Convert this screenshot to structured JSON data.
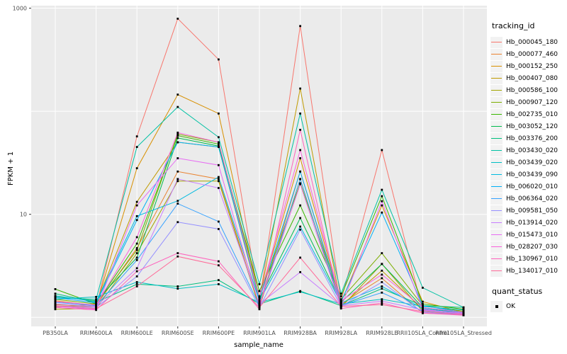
{
  "colors": {
    "panel_bg": "#ebebeb",
    "grid": "#ffffff",
    "tick": "#333333",
    "tick_text": "#4d4d4d",
    "marker": "#000000",
    "key_bg": "#f2f2f2"
  },
  "chart_data": {
    "type": "line",
    "title": "",
    "xlabel": "sample_name",
    "ylabel": "FPKM + 1",
    "yscale": "log10",
    "ylim": [
      1,
      1000
    ],
    "yticks": [
      {
        "value": 1000,
        "label": "1000"
      },
      {
        "value": 10,
        "label": "10"
      }
    ],
    "ygrid_values": [
      1,
      10,
      100,
      1000
    ],
    "grid": true,
    "legend_position": "right",
    "x_categories": [
      "PB350LA",
      "RRIM600LA",
      "RRIM600LE",
      "RRIM600SE",
      "RRIM600PE",
      "RRIM901LA",
      "RRIM928BA",
      "RRIM928LA",
      "RRIM928LE",
      "RRII105LA_Control",
      "RRII105LA_Stressed"
    ],
    "legend_title": "tracking_id",
    "series": [
      {
        "name": "Hb_000045_180",
        "color": "#F8766D",
        "values": [
          1.35,
          1.25,
          57,
          790,
          318,
          1.4,
          670,
          1.45,
          42,
          1.17,
          1.1
        ]
      },
      {
        "name": "Hb_000077_460",
        "color": "#EA8331",
        "values": [
          1.45,
          1.3,
          4.7,
          26,
          22,
          1.3,
          26,
          1.35,
          2.4,
          1.1,
          1.06
        ]
      },
      {
        "name": "Hb_000152_250",
        "color": "#D89000",
        "values": [
          1.33,
          1.28,
          28,
          145,
          95,
          1.5,
          35,
          1.4,
          12.2,
          1.42,
          1.12
        ]
      },
      {
        "name": "Hb_000407_080",
        "color": "#C09B00",
        "values": [
          1.25,
          1.35,
          13.2,
          50,
          45,
          1.45,
          166,
          1.3,
          2.84,
          1.2,
          1.08
        ]
      },
      {
        "name": "Hb_000586_100",
        "color": "#A3A500",
        "values": [
          1.2,
          1.22,
          4.2,
          21,
          21,
          1.25,
          22,
          1.25,
          3.3,
          1.15,
          1.05
        ]
      },
      {
        "name": "Hb_000907_120",
        "color": "#7CAE00",
        "values": [
          1.5,
          1.35,
          4.5,
          60,
          50,
          1.6,
          20,
          1.5,
          4.2,
          1.3,
          1.15
        ]
      },
      {
        "name": "Hb_002735_010",
        "color": "#39B600",
        "values": [
          1.88,
          1.35,
          5.2,
          58,
          48,
          1.8,
          12.2,
          1.6,
          15,
          1.35,
          1.2
        ]
      },
      {
        "name": "Hb_003052_120",
        "color": "#00BB4E",
        "values": [
          1.6,
          1.45,
          3.8,
          55,
          46,
          1.5,
          9.2,
          1.4,
          3.3,
          1.25,
          1.1
        ]
      },
      {
        "name": "Hb_003376_200",
        "color": "#00BF7D",
        "values": [
          1.7,
          1.4,
          2.1,
          2.0,
          2.3,
          1.35,
          1.8,
          1.3,
          1.9,
          1.3,
          1.25
        ]
      },
      {
        "name": "Hb_003430_020",
        "color": "#00C1A3",
        "values": [
          1.55,
          1.5,
          45,
          110,
          56,
          2.1,
          95,
          1.7,
          17.3,
          1.94,
          1.25
        ]
      },
      {
        "name": "Hb_003439_020",
        "color": "#00BFC4",
        "values": [
          1.5,
          1.58,
          2.2,
          1.9,
          2.1,
          1.4,
          1.77,
          1.35,
          1.5,
          1.28,
          1.18
        ]
      },
      {
        "name": "Hb_003439_090",
        "color": "#00BAE0",
        "values": [
          1.62,
          1.42,
          9.6,
          13.5,
          23,
          1.45,
          7.6,
          1.38,
          2.0,
          1.22,
          1.1
        ]
      },
      {
        "name": "Hb_006020_010",
        "color": "#00B0F6",
        "values": [
          1.56,
          1.38,
          8.8,
          50,
          45,
          1.5,
          26,
          1.42,
          10.4,
          1.3,
          1.12
        ]
      },
      {
        "name": "Hb_006364_020",
        "color": "#35A2FF",
        "values": [
          1.4,
          1.3,
          3.6,
          12.7,
          8.5,
          1.3,
          22,
          1.3,
          1.74,
          1.15,
          1.08
        ]
      },
      {
        "name": "Hb_009581_050",
        "color": "#9590FF",
        "values": [
          1.3,
          1.25,
          2.5,
          8.4,
          7.2,
          1.25,
          7.1,
          1.28,
          2.2,
          1.12,
          1.06
        ]
      },
      {
        "name": "Hb_013914_020",
        "color": "#C77CFF",
        "values": [
          1.35,
          1.28,
          3.0,
          22,
          18,
          1.35,
          2.75,
          1.3,
          1.44,
          1.18,
          1.1
        ]
      },
      {
        "name": "Hb_015473_010",
        "color": "#E76BF3",
        "values": [
          1.28,
          1.2,
          12.2,
          35,
          30,
          1.3,
          19.6,
          1.25,
          13.4,
          1.2,
          1.08
        ]
      },
      {
        "name": "Hb_028207_030",
        "color": "#FA62DB",
        "values": [
          1.42,
          1.32,
          6.0,
          62,
          50,
          1.55,
          42,
          1.45,
          2.6,
          1.25,
          1.12
        ]
      },
      {
        "name": "Hb_130967_010",
        "color": "#FF62BC",
        "values": [
          1.25,
          1.18,
          2.8,
          4.2,
          3.5,
          1.2,
          66,
          1.22,
          1.38,
          1.1,
          1.05
        ]
      },
      {
        "name": "Hb_134017_010",
        "color": "#FF6A98",
        "values": [
          1.3,
          1.22,
          2.0,
          3.9,
          3.2,
          1.25,
          3.8,
          1.28,
          1.33,
          1.14,
          1.07
        ]
      }
    ],
    "legend2": {
      "title": "quant_status",
      "items": [
        {
          "label": "OK"
        }
      ]
    }
  },
  "layout_text": {
    "ylabel": "FPKM + 1",
    "xlabel": "sample_name",
    "legend_title": "tracking_id",
    "legend2_title": "quant_status",
    "quant_ok": "OK"
  }
}
